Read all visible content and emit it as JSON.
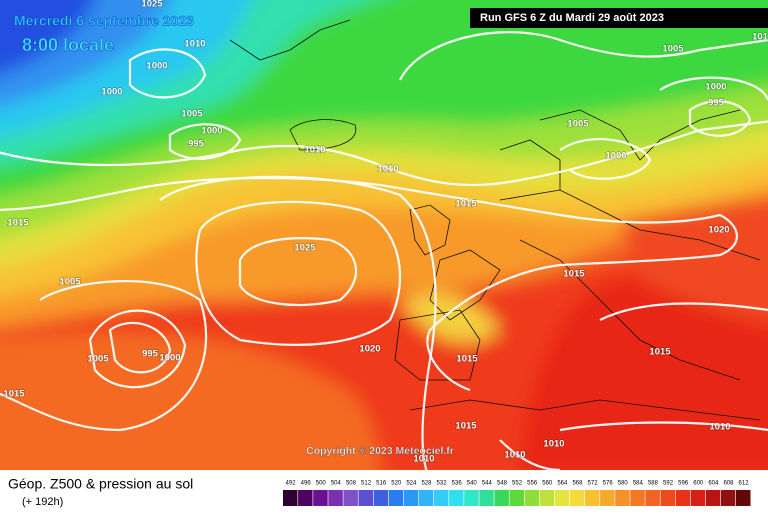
{
  "header": {
    "date": "Mercredi 6 septembre 2023",
    "time": "8:00 locale",
    "run": "Run GFS 6 Z du Mardi 29 août 2023"
  },
  "isobar_labels": [
    "1025",
    "1010",
    "1000",
    "1000",
    "1005",
    "1000",
    "995",
    "1010",
    "1010",
    "1015",
    "1005",
    "1000",
    "995",
    "1005",
    "1000",
    "1020",
    "1015",
    "1025",
    "1015",
    "1005",
    "1005",
    "995",
    "1000",
    "1020",
    "1015",
    "1015",
    "1015",
    "1015",
    "1010",
    "1010",
    "1010",
    "1010",
    "101"
  ],
  "copyright": "Copyright © 2023 Meteociel.fr",
  "footer": {
    "title": "Géop. Z500 & pression au sol",
    "subtitle": "(+ 192h)"
  },
  "scale": [
    492,
    496,
    500,
    504,
    508,
    512,
    516,
    520,
    524,
    528,
    532,
    536,
    540,
    544,
    548,
    552,
    556,
    560,
    564,
    568,
    572,
    576,
    580,
    584,
    588,
    592,
    596,
    600,
    604,
    608,
    612
  ]
}
